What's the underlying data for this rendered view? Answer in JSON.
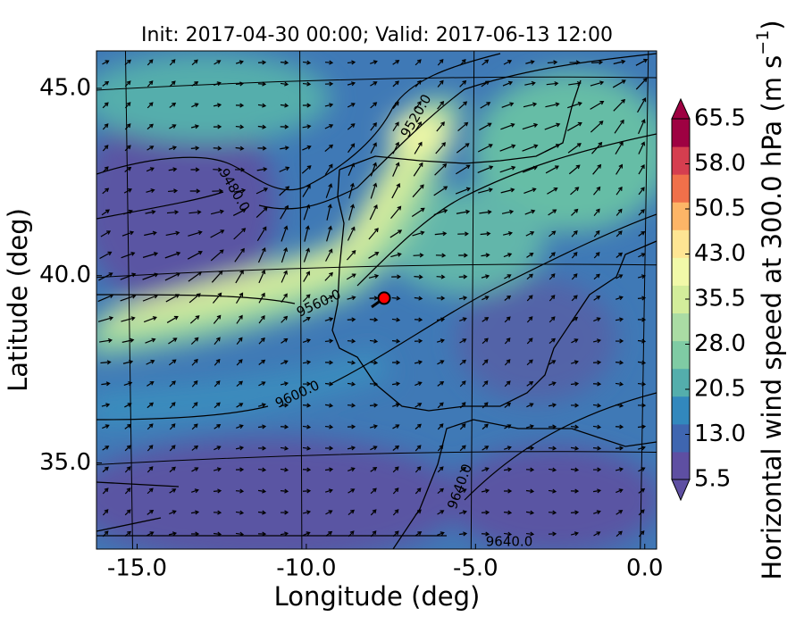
{
  "chart_data": {
    "type": "map",
    "title": "Init: 2017-04-30 00:00; Valid: 2017-06-13 12:00",
    "x_label": "Longitude (deg)",
    "y_label": "Latitude (deg)",
    "xlim": [
      -16.2,
      0.35
    ],
    "ylim": [
      32.7,
      46.0
    ],
    "xticks": [
      {
        "value": -15,
        "label": "-15.0"
      },
      {
        "value": -10,
        "label": "-10.0"
      },
      {
        "value": -5,
        "label": "-5.0"
      },
      {
        "value": 0,
        "label": "0.0"
      }
    ],
    "yticks": [
      {
        "value": 35,
        "label": "35.0"
      },
      {
        "value": 40,
        "label": "40.0"
      },
      {
        "value": 45,
        "label": "45.0"
      }
    ],
    "marker": {
      "lon": -7.7,
      "lat": 39.4,
      "color": "#ff0000"
    },
    "contour_labels": [
      "9480.0",
      "9520.0",
      "9560.0",
      "9600.0",
      "9640.0",
      "9640.0"
    ],
    "colorbar": {
      "label": [
        "Horizontal wind speed at 300.0 hPa (m s",
        "−1",
        ")"
      ],
      "lim": [
        5.5,
        65.5
      ],
      "ticks": [
        5.5,
        {
          "value": 13,
          "label": "13.0"
        },
        20.5,
        {
          "value": 28,
          "label": "28.0"
        },
        35.5,
        {
          "value": 43,
          "label": "43.0"
        },
        50.5,
        {
          "value": 58,
          "label": "58.0"
        },
        65.5
      ],
      "colors": [
        "#5e4fa2",
        "#3f66b0",
        "#3288bd",
        "#54aeac",
        "#7fcba4",
        "#aadca4",
        "#d3ed9b",
        "#f1f9a9",
        "#fee593",
        "#fdb567",
        "#f0704a",
        "#d53e4f",
        "#9e0142"
      ]
    }
  }
}
